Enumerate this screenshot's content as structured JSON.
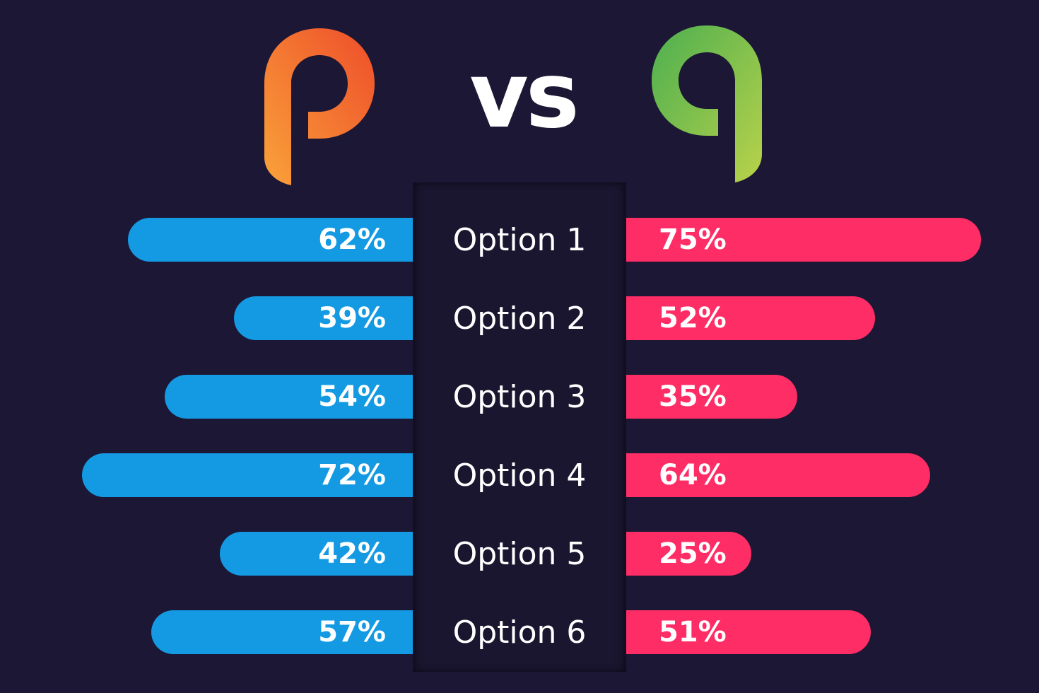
{
  "header": {
    "left_logo_letter": "p",
    "vs_label": "vs",
    "right_logo_letter": "q"
  },
  "colors": {
    "background": "#1b1734",
    "left_bar": "#139ae3",
    "right_bar": "#ff2d66",
    "logo_p_gradient": [
      "#f9a23a",
      "#ee4d2a"
    ],
    "logo_q_gradient": [
      "#4caf50",
      "#b9d24a"
    ]
  },
  "chart_data": {
    "type": "bar",
    "orientation": "horizontal-diverging",
    "categories": [
      "Option 1",
      "Option 2",
      "Option 3",
      "Option 4",
      "Option 5",
      "Option 6"
    ],
    "series": [
      {
        "values": [
          62,
          39,
          54,
          72,
          42,
          57
        ],
        "labels": [
          "62%",
          "39%",
          "54%",
          "72%",
          "42%",
          "57%"
        ],
        "color": "#139ae3",
        "side": "left"
      },
      {
        "values": [
          75,
          52,
          35,
          64,
          25,
          51
        ],
        "labels": [
          "75%",
          "52%",
          "35%",
          "64%",
          "25%",
          "51%"
        ],
        "color": "#ff2d66",
        "side": "right"
      }
    ],
    "unit": "%"
  }
}
